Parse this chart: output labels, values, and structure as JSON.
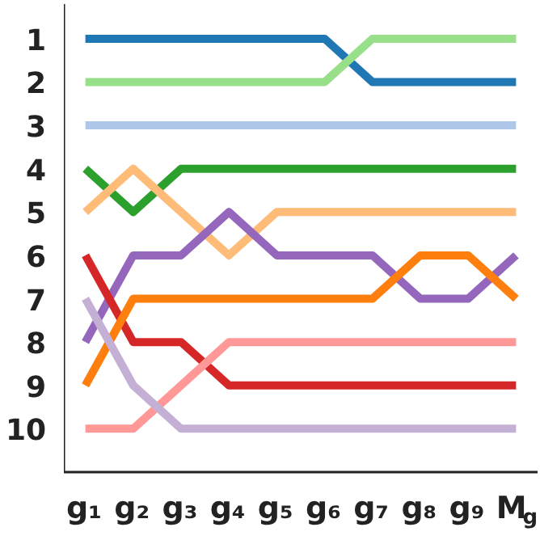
{
  "chart_data": {
    "type": "line",
    "categories": [
      "g₁",
      "g₂",
      "g₃",
      "g₄",
      "g₅",
      "g₆",
      "g₇",
      "g₈",
      "g₉",
      "M$_{g}$"
    ],
    "ylim": [
      11,
      0.2
    ],
    "yticks": [
      1,
      2,
      3,
      4,
      5,
      6,
      7,
      8,
      9,
      10
    ],
    "line_style": "solid",
    "series": [
      {
        "color": "#1f77b4",
        "values": [
          1,
          1,
          1,
          1,
          1,
          1,
          2,
          2,
          2,
          2
        ]
      },
      {
        "color": "#98df8a",
        "values": [
          2,
          2,
          2,
          2,
          2,
          2,
          1,
          1,
          1,
          1
        ]
      },
      {
        "color": "#aec7e8",
        "values": [
          3,
          3,
          3,
          3,
          3,
          3,
          3,
          3,
          3,
          3
        ]
      },
      {
        "color": "#2ca02c",
        "values": [
          4,
          5,
          4,
          4,
          4,
          4,
          4,
          4,
          4,
          4
        ]
      },
      {
        "color": "#ffbb78",
        "values": [
          5,
          4,
          5,
          6,
          5,
          5,
          5,
          5,
          5,
          5
        ]
      },
      {
        "color": "#9467bd",
        "values": [
          8,
          6,
          6,
          5,
          6,
          6,
          6,
          7,
          7,
          6
        ]
      },
      {
        "color": "#d62728",
        "values": [
          6,
          8,
          8,
          9,
          9,
          9,
          9,
          9,
          9,
          9
        ]
      },
      {
        "color": "#ff7f0e",
        "values": [
          9,
          7,
          7,
          7,
          7,
          7,
          7,
          6,
          6,
          7
        ]
      },
      {
        "color": "#ff9896",
        "values": [
          10,
          10,
          9,
          8,
          8,
          8,
          8,
          8,
          8,
          8
        ]
      },
      {
        "color": "#c5b0d5",
        "values": [
          7,
          9,
          10,
          10,
          10,
          10,
          10,
          10,
          10,
          10
        ]
      }
    ]
  }
}
